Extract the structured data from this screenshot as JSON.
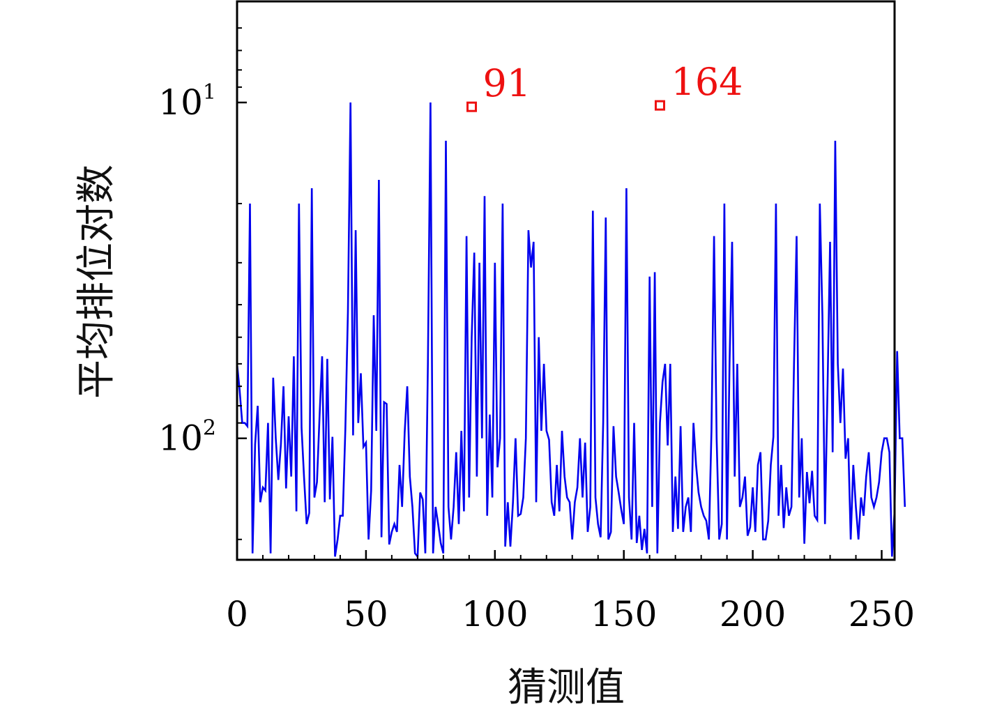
{
  "chart_data": {
    "type": "line",
    "xlabel": "猜测值",
    "ylabel": "平均排位对数",
    "xlim": [
      0,
      255
    ],
    "ylim": [
      230,
      5
    ],
    "y_reversed": true,
    "y_scale": "log",
    "x_ticks": [
      {
        "value": 0,
        "label": "0"
      },
      {
        "value": 50,
        "label": "50"
      },
      {
        "value": 100,
        "label": "100"
      },
      {
        "value": 150,
        "label": "150"
      },
      {
        "value": 200,
        "label": "200"
      },
      {
        "value": 250,
        "label": "250"
      }
    ],
    "y_ticks": [
      {
        "value": 10,
        "base": "10",
        "exp": "1"
      },
      {
        "value": 100,
        "base": "10",
        "exp": "2"
      }
    ],
    "grid": false,
    "line_color": "#0000ee",
    "annotation_color": "#ee1111",
    "series": [
      {
        "values": [
          60,
          72,
          90,
          90,
          92,
          20,
          220,
          104,
          80,
          155,
          140,
          143,
          90,
          220,
          66,
          100,
          133,
          104,
          70,
          141,
          86,
          130,
          57,
          165,
          20,
          93,
          131,
          180,
          167,
          18,
          150,
          135,
          86,
          57,
          155,
          58,
          152,
          99,
          225,
          200,
          170,
          170,
          94,
          42,
          10,
          98,
          24,
          90,
          64,
          106,
          103,
          200,
          143,
          43,
          95,
          17,
          197,
          78,
          79,
          207,
          190,
          180,
          190,
          120,
          160,
          96,
          70,
          130,
          160,
          220,
          225,
          145,
          152,
          220,
          60,
          10,
          220,
          160,
          180,
          205,
          220,
          13,
          160,
          200,
          160,
          110,
          180,
          95,
          165,
          25,
          150,
          50,
          28,
          130,
          30,
          100,
          19,
          170,
          85,
          150,
          30,
          122,
          100,
          20,
          210,
          155,
          210,
          155,
          100,
          170,
          168,
          150,
          100,
          24,
          31,
          26,
          155,
          50,
          95,
          60,
          95,
          101,
          155,
          170,
          120,
          165,
          95,
          130,
          150,
          155,
          200,
          155,
          140,
          100,
          150,
          103,
          190,
          160,
          21,
          150,
          180,
          197,
          90,
          22,
          200,
          190,
          92,
          130,
          145,
          163,
          180,
          18,
          150,
          200,
          90,
          205,
          170,
          215,
          186,
          220,
          33,
          160,
          32,
          220,
          90,
          68,
          60,
          105,
          60,
          190,
          130,
          186,
          92,
          190,
          160,
          150,
          190,
          90,
          120,
          145,
          160,
          170,
          176,
          200,
          95,
          25,
          100,
          200,
          180,
          20,
          200,
          60,
          26,
          130,
          60,
          160,
          150,
          130,
          195,
          184,
          140,
          190,
          120,
          110,
          200,
          200,
          176,
          120,
          99,
          20,
          170,
          120,
          185,
          140,
          170,
          160,
          60,
          25,
          150,
          100,
          206,
          126,
          156,
          125,
          170,
          175,
          20,
          43,
          180,
          70,
          26,
          110,
          13,
          60,
          90,
          62,
          115,
          100,
          200,
          120,
          160,
          200,
          150,
          170,
          130,
          110,
          150,
          160,
          150,
          135,
          110,
          100,
          100,
          110,
          225,
          165,
          55,
          100,
          100,
          160
        ]
      }
    ],
    "annotations": [
      {
        "x": 91,
        "y": 10.3,
        "label": "91"
      },
      {
        "x": 164,
        "y": 10.2,
        "label": "164"
      }
    ]
  }
}
